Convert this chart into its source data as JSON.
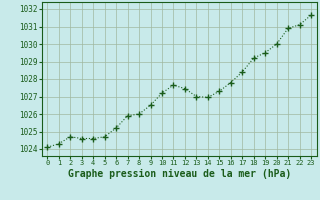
{
  "x": [
    0,
    1,
    2,
    3,
    4,
    5,
    6,
    7,
    8,
    9,
    10,
    11,
    12,
    13,
    14,
    15,
    16,
    17,
    18,
    19,
    20,
    21,
    22,
    23
  ],
  "y": [
    1024.1,
    1024.3,
    1024.7,
    1024.6,
    1024.6,
    1024.7,
    1025.2,
    1025.9,
    1026.0,
    1026.5,
    1027.2,
    1027.65,
    1027.45,
    1027.0,
    1026.95,
    1027.3,
    1027.8,
    1028.4,
    1029.2,
    1029.5,
    1030.0,
    1030.9,
    1031.1,
    1031.65
  ],
  "line_color": "#1a5c1a",
  "marker": "+",
  "marker_size": 4,
  "marker_linewidth": 1.0,
  "bg_color": "#c8eaea",
  "grid_color": "#a0b8a0",
  "text_color": "#1a5c1a",
  "xlabel": "Graphe pression niveau de la mer (hPa)",
  "xlabel_fontsize": 7,
  "ylabel_ticks": [
    1024,
    1025,
    1026,
    1027,
    1028,
    1029,
    1030,
    1031,
    1032
  ],
  "ylim": [
    1023.6,
    1032.4
  ],
  "xlim": [
    -0.5,
    23.5
  ],
  "linewidth": 0.8,
  "linestyle": ":"
}
